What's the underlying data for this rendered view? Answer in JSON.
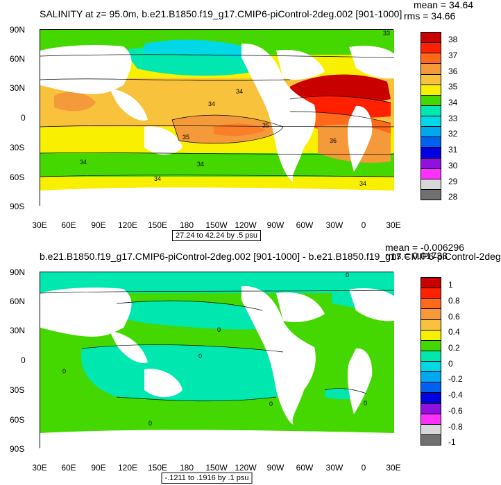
{
  "top": {
    "title": "SALINITY at z=  95.0m, b.e21.B1850.f19_g17.CMIP6-piControl-2deg.002 [901-1000]",
    "mean": "mean = 34.64",
    "rms": "rms = 34.66",
    "range": "27.24 to 42.24 by .5 psu",
    "lat_labels": [
      "90N",
      "60N",
      "30N",
      "0",
      "30S",
      "60S",
      "90S"
    ],
    "lon_labels": [
      "30E",
      "60E",
      "90E",
      "120E",
      "150E",
      "180",
      "150W",
      "120W",
      "90W",
      "60W",
      "30W",
      "0",
      "30E"
    ],
    "colorbar": {
      "labels": [
        "38",
        "37",
        "36",
        "35",
        "34",
        "33",
        "32",
        "31",
        "30",
        "29",
        "28"
      ],
      "colors": [
        "#c80000",
        "#ff2000",
        "#ff6a1a",
        "#f59a3a",
        "#f8c23c",
        "#f8f000",
        "#44d800",
        "#00e8b0",
        "#00d8e8",
        "#00a8f0",
        "#0060f0",
        "#0000e0",
        "#9010e0",
        "#ff30ff",
        "#d8d8d8",
        "#707070"
      ]
    },
    "contour_labels": [
      "33",
      "34",
      "34",
      "35",
      "35",
      "36",
      "34",
      "34",
      "34",
      "34"
    ]
  },
  "bottom": {
    "title": "b.e21.B1850.f19_g17.CMIP6-piControl-2deg.002 [901-1000] - b.e21.B1850.f19_g17.CMIP6-piControl-2deg",
    "mean": "mean = -0.006296",
    "rms": "rms = 0.01738",
    "range": "-.1211 to .1916 by .1 psu",
    "lat_labels": [
      "90N",
      "60N",
      "30N",
      "0",
      "30S",
      "60S",
      "90S"
    ],
    "lon_labels": [
      "30E",
      "60E",
      "90E",
      "120E",
      "150E",
      "180",
      "150W",
      "120W",
      "90W",
      "60W",
      "30W",
      "0",
      "30E"
    ],
    "colorbar": {
      "labels": [
        "1",
        "0.8",
        "0.6",
        "0.4",
        "0.2",
        "0",
        "-0.2",
        "-0.4",
        "-0.6",
        "-0.8",
        "-1"
      ],
      "colors": [
        "#c80000",
        "#ff2000",
        "#ff6a1a",
        "#f59a3a",
        "#f8c23c",
        "#f8f000",
        "#44d800",
        "#00e8b0",
        "#00d8e8",
        "#00a8f0",
        "#0060f0",
        "#0000e0",
        "#9010e0",
        "#ff30ff",
        "#d8d8d8",
        "#707070"
      ]
    },
    "contour_labels": [
      "0",
      "0",
      "0",
      "0",
      "0",
      "0",
      "0"
    ]
  }
}
